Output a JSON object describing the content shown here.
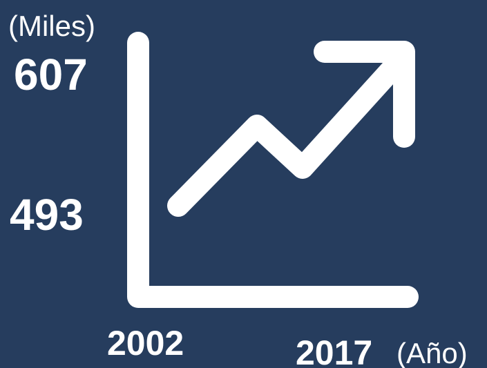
{
  "y_axis": {
    "unit": "(Miles)",
    "top": "607",
    "bottom": "493"
  },
  "x_axis": {
    "start": "2002",
    "end": "2017",
    "unit": "(Año)"
  }
}
